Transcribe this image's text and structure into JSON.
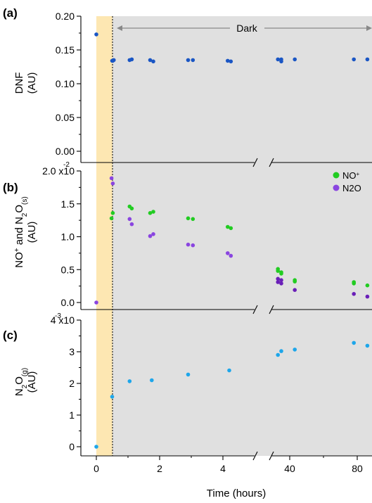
{
  "colors": {
    "shade": "#e0e0e0",
    "light_period": "#fde7b2",
    "dnf": "#1a56c4",
    "no_plus": "#22cc22",
    "n2o_s": "#8a45e0",
    "n2o_s_dark": "#6a1fb8",
    "n2o_g": "#1ea6ea",
    "arrow": "#888888"
  },
  "chart_data": [
    {
      "type": "scatter",
      "panel": "(a)",
      "ylabel_lines": [
        "DNF",
        "(AU)"
      ],
      "ylim": [
        0,
        0.2
      ],
      "yticks": [
        "0.00",
        "0.05",
        "0.10",
        "0.15",
        "0.20"
      ],
      "annotation": "Dark",
      "series": [
        {
          "color": "#1a56c4",
          "x": [
            0,
            0.5,
            0.52,
            0.55,
            1.05,
            1.12,
            1.7,
            1.8,
            2.9,
            3.05,
            4.15,
            4.25,
            33,
            35,
            35,
            43,
            78,
            86
          ],
          "y": [
            0.173,
            0.134,
            0.134,
            0.135,
            0.135,
            0.136,
            0.135,
            0.133,
            0.135,
            0.135,
            0.134,
            0.133,
            0.136,
            0.136,
            0.133,
            0.136,
            0.136,
            0.136
          ]
        }
      ]
    },
    {
      "type": "scatter",
      "panel": "(b)",
      "ylim": [
        0,
        0.02
      ],
      "yticks": [
        "0.0",
        "0.5",
        "1.0",
        "1.5",
        "2.0 x10"
      ],
      "exponent": "-2",
      "legend": {
        "items": [
          "NO",
          "N2O"
        ],
        "position": "top-right"
      },
      "series": [
        {
          "name": "NO+",
          "color": "#22cc22",
          "x": [
            0.48,
            0.52,
            1.05,
            1.12,
            1.7,
            1.8,
            2.9,
            3.05,
            4.15,
            4.25,
            33,
            33,
            35,
            35,
            43,
            43,
            78,
            78,
            86
          ],
          "y": [
            0.0128,
            0.0136,
            0.0146,
            0.0143,
            0.0136,
            0.0138,
            0.0128,
            0.0127,
            0.0115,
            0.0113,
            0.0051,
            0.0048,
            0.0046,
            0.0044,
            0.0034,
            0.0032,
            0.0031,
            0.0029,
            0.0026
          ]
        },
        {
          "name": "N2O(s)",
          "color": "#8a45e0",
          "x": [
            0,
            0.48,
            0.52,
            1.05,
            1.12,
            1.7,
            1.8,
            2.9,
            3.05,
            4.15,
            4.25,
            33,
            33,
            35,
            35,
            43,
            78,
            86
          ],
          "y": [
            0.0,
            0.0189,
            0.0181,
            0.0127,
            0.0119,
            0.0101,
            0.0104,
            0.0088,
            0.0087,
            0.0075,
            0.0071,
            0.0036,
            0.0031,
            0.0034,
            0.0029,
            0.0019,
            0.0013,
            0.0009
          ]
        }
      ]
    },
    {
      "type": "scatter",
      "panel": "(c)",
      "ylim": [
        0,
        0.004
      ],
      "yticks": [
        "0",
        "1",
        "2",
        "3",
        "4 x10"
      ],
      "exponent": "-3",
      "xlabel": "Time (hours)",
      "xticks": [
        "0",
        "2",
        "4",
        "40",
        "80"
      ],
      "series": [
        {
          "color": "#1ea6ea",
          "x": [
            0,
            0.5,
            1.05,
            1.75,
            2.9,
            4.2,
            33,
            35,
            43,
            78,
            86
          ],
          "y": [
            0.0,
            0.00158,
            0.00207,
            0.0021,
            0.00228,
            0.00241,
            0.0029,
            0.00302,
            0.00307,
            0.00328,
            0.00319
          ]
        }
      ]
    }
  ]
}
